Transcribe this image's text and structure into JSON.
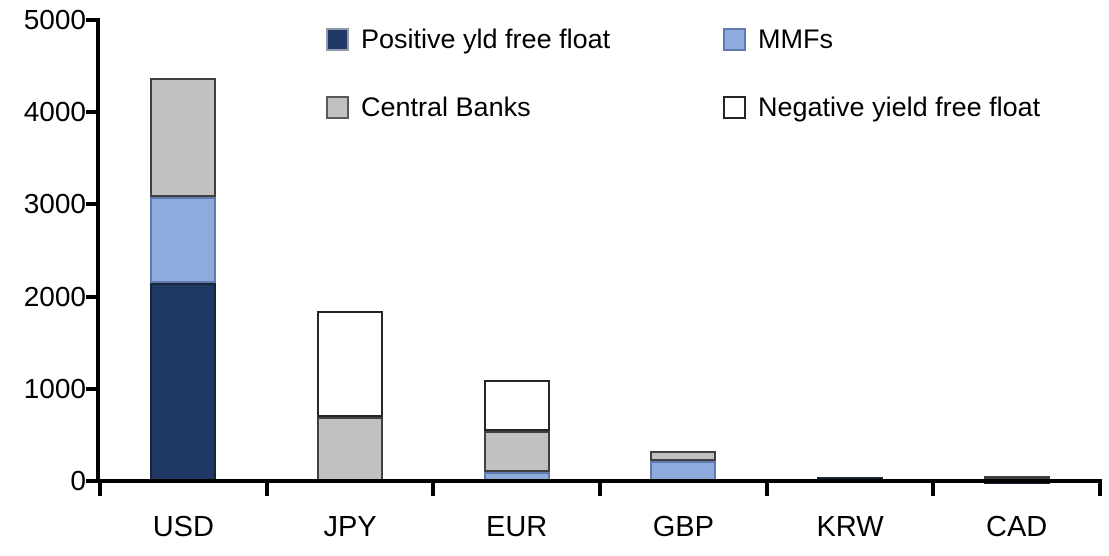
{
  "chart_data": {
    "type": "bar",
    "stacked": true,
    "title": "",
    "xlabel": "",
    "ylabel": "",
    "categories": [
      "USD",
      "JPY",
      "EUR",
      "GBP",
      "KRW",
      "CAD"
    ],
    "series": [
      {
        "name": "Positive yld free float",
        "color": "#1F3864",
        "border": "#16243C",
        "swatch_border": "#8E9AAB",
        "values": [
          2150,
          0,
          0,
          0,
          45,
          30
        ]
      },
      {
        "name": "MMFs",
        "color": "#8FAADC",
        "border": "#5F7AAE",
        "swatch_border": "#5F7AAE",
        "values": [
          930,
          0,
          100,
          215,
          0,
          0
        ]
      },
      {
        "name": "Central Banks",
        "color": "#C1C1C1",
        "border": "#404040",
        "swatch_border": "#595959",
        "values": [
          1290,
          690,
          440,
          115,
          0,
          30
        ]
      },
      {
        "name": "Negative yield free float",
        "color": "#FFFFFF",
        "border": "#262626",
        "swatch_border": "#262626",
        "values": [
          0,
          1150,
          560,
          0,
          0,
          0
        ]
      }
    ],
    "totals": [
      4370,
      1840,
      1100,
      330,
      45,
      60
    ],
    "ylim": [
      0,
      5000
    ],
    "yticks": [
      0,
      1000,
      2000,
      3000,
      4000,
      5000
    ],
    "grid": false,
    "legend_position": "top",
    "axis_color": "#000000",
    "background_color": "#FFFFFF"
  }
}
